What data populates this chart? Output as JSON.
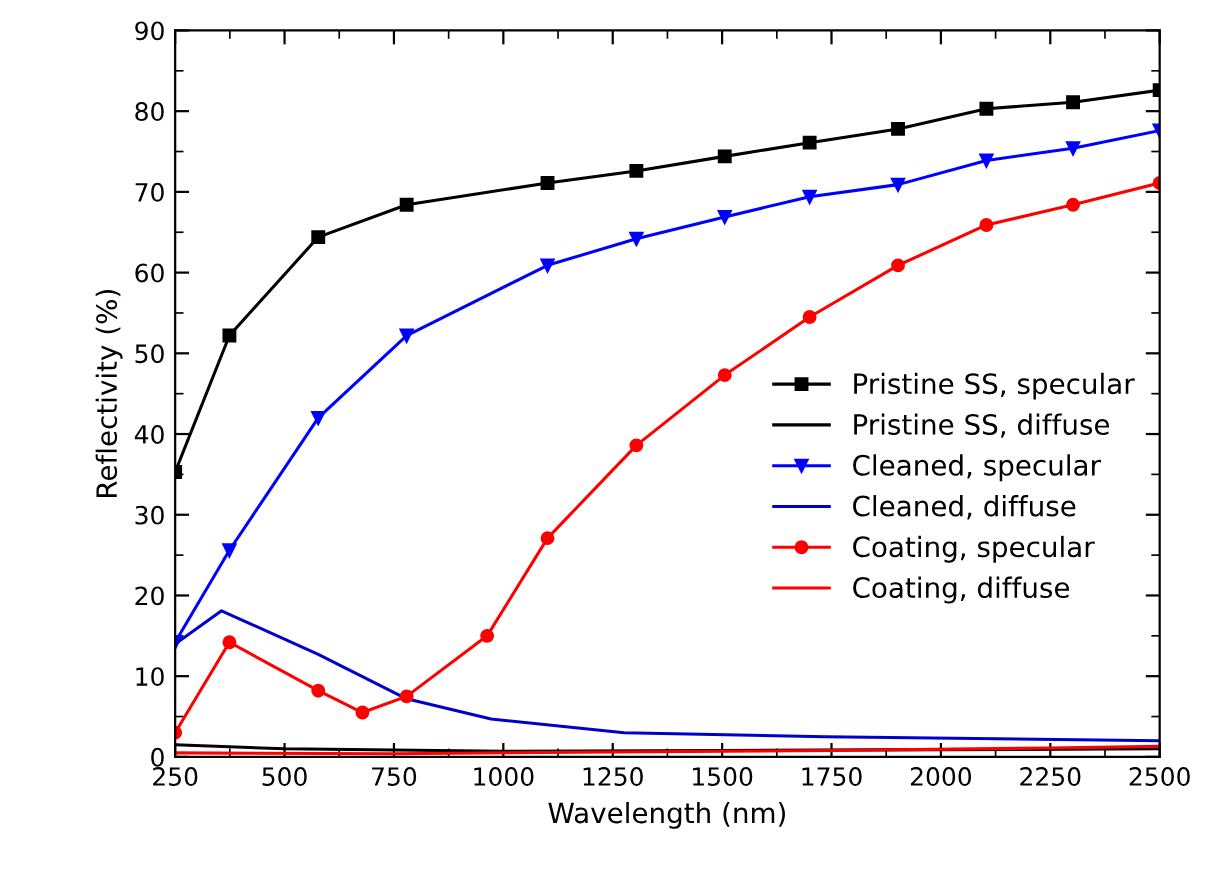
{
  "chart_data": {
    "type": "line",
    "xlabel": "Wavelength (nm)",
    "ylabel": "Reflectivity (%)",
    "xlim": [
      250,
      2500
    ],
    "ylim": [
      0,
      90
    ],
    "xticks": [
      250,
      500,
      750,
      1000,
      1250,
      1500,
      1750,
      2000,
      2250,
      2500
    ],
    "yticks": [
      0,
      10,
      20,
      30,
      40,
      50,
      60,
      70,
      80,
      90
    ],
    "grid": false,
    "legend": "right",
    "line_style": "solid",
    "series": [
      {
        "name": "Pristine SS, specular",
        "color": "#000000",
        "marker": "square",
        "x": [
          250,
          374,
          577,
          779,
          1101,
          1304,
          1506,
          1700,
          1902,
          2104,
          2302,
          2500
        ],
        "values": [
          35.3,
          52.2,
          64.4,
          68.4,
          71.1,
          72.6,
          74.4,
          76.1,
          77.8,
          80.3,
          81.1,
          82.6
        ]
      },
      {
        "name": "Pristine SS, diffuse",
        "color": "#000000",
        "marker": "none",
        "x": [
          250,
          500,
          1000,
          1500,
          2000,
          2500
        ],
        "values": [
          1.5,
          1.0,
          0.7,
          0.8,
          0.9,
          1.0
        ]
      },
      {
        "name": "Cleaned, specular",
        "color": "#0000ff",
        "marker": "triangle",
        "x": [
          250,
          374,
          577,
          779,
          1101,
          1304,
          1506,
          1700,
          1902,
          2104,
          2302,
          2500
        ],
        "values": [
          14.2,
          25.6,
          42.0,
          52.2,
          60.9,
          64.2,
          66.9,
          69.4,
          70.9,
          73.9,
          75.4,
          77.6
        ]
      },
      {
        "name": "Cleaned, diffuse",
        "color": "#0000cc",
        "marker": "none",
        "x": [
          250,
          356,
          577,
          779,
          972,
          1276,
          1736,
          2500
        ],
        "values": [
          14.0,
          18.1,
          12.7,
          7.2,
          4.7,
          3.0,
          2.5,
          2.0
        ]
      },
      {
        "name": "Coating, specular",
        "color": "#ff0000",
        "marker": "circle",
        "x": [
          250,
          374,
          577,
          678,
          779,
          963,
          1101,
          1304,
          1506,
          1700,
          1902,
          2104,
          2302,
          2500
        ],
        "values": [
          3.0,
          14.2,
          8.2,
          5.5,
          7.5,
          15.0,
          27.1,
          38.6,
          47.3,
          54.5,
          60.9,
          65.9,
          68.4,
          71.1
        ]
      },
      {
        "name": "Coating, diffuse",
        "color": "#ff0000",
        "marker": "none",
        "x": [
          250,
          750,
          1250,
          1750,
          2250,
          2500
        ],
        "values": [
          0.5,
          0.4,
          0.6,
          0.8,
          1.1,
          1.3
        ]
      }
    ]
  }
}
